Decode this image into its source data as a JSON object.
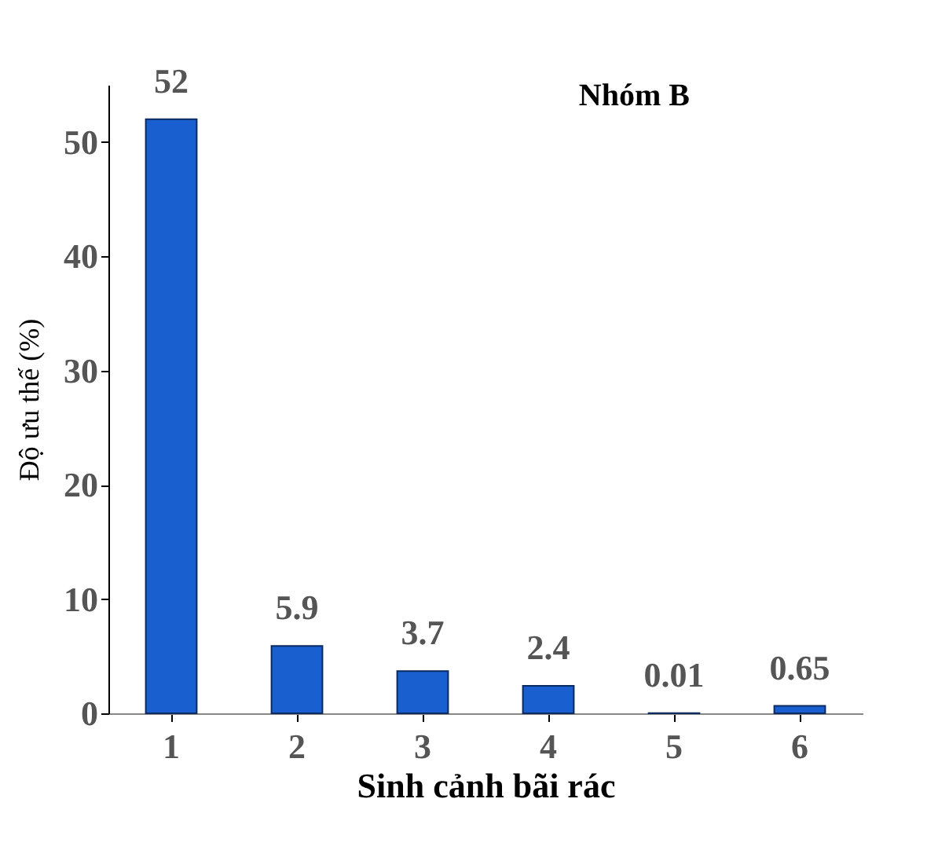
{
  "chart_data": {
    "type": "bar",
    "title": "Nhóm B",
    "xlabel": "Sinh cảnh bãi rác",
    "ylabel": "Độ ưu thế (%)",
    "categories": [
      "1",
      "2",
      "3",
      "4",
      "5",
      "6"
    ],
    "values": [
      52,
      5.9,
      3.7,
      2.4,
      0.01,
      0.65
    ],
    "color": "#1a5fd0",
    "ylim": [
      0,
      55
    ],
    "yticks": [
      0,
      10,
      20,
      30,
      40,
      50
    ],
    "grid": false,
    "data_labels": true
  }
}
